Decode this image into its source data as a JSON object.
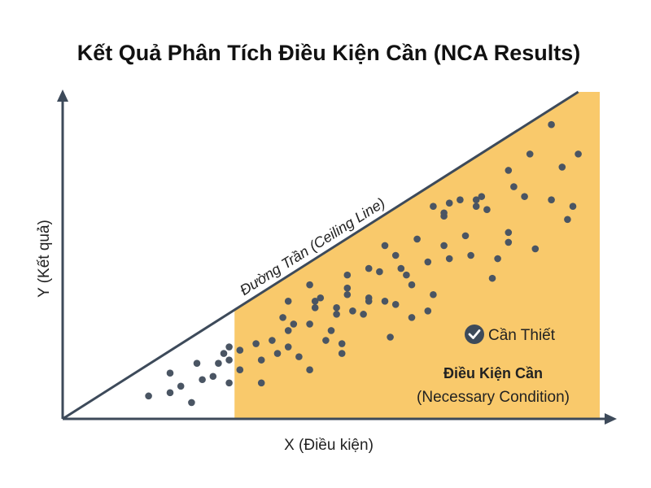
{
  "title": "Kết Quả Phân Tích Điều Kiện Cần (NCA Results)",
  "colors": {
    "axis": "#3d4a5a",
    "dot": "#4a5563",
    "region": "#f9c96b",
    "background": "#ffffff"
  },
  "chart_data": {
    "type": "scatter",
    "title": "Kết Quả Phân Tích Điều Kiện Cần (NCA Results)",
    "xlabel": "X (Điều kiện)",
    "ylabel": "Y (Kết quả)",
    "xlim": [
      0,
      100
    ],
    "ylim": [
      0,
      100
    ],
    "ticks": "none",
    "grid": false,
    "ceiling_line": {
      "label": "Đường Trần (Ceiling Line)",
      "from": [
        0,
        0
      ],
      "to": [
        96,
        100
      ]
    },
    "necessary_region": {
      "x_from": 32,
      "x_to": 100,
      "color": "#f9c96b"
    },
    "annotations": {
      "badge": "Cần Thiết",
      "badge_icon": "check-circle-icon",
      "region_title": "Điều Kiện Cần",
      "region_subtitle": "(Necessary Condition)"
    },
    "points": [
      [
        16,
        7
      ],
      [
        20,
        8
      ],
      [
        24,
        5
      ],
      [
        20,
        14
      ],
      [
        22,
        10
      ],
      [
        25,
        17
      ],
      [
        26,
        12
      ],
      [
        28,
        13
      ],
      [
        29,
        17
      ],
      [
        30,
        20
      ],
      [
        31,
        11
      ],
      [
        31,
        18
      ],
      [
        31,
        22
      ],
      [
        33,
        21
      ],
      [
        33,
        15
      ],
      [
        36,
        23
      ],
      [
        37,
        11
      ],
      [
        37,
        18
      ],
      [
        39,
        24
      ],
      [
        40,
        20
      ],
      [
        41,
        31
      ],
      [
        42,
        36
      ],
      [
        42,
        22
      ],
      [
        43,
        29
      ],
      [
        42,
        27
      ],
      [
        44,
        19
      ],
      [
        46,
        29
      ],
      [
        46,
        15
      ],
      [
        46,
        41
      ],
      [
        47,
        36
      ],
      [
        47,
        34
      ],
      [
        49,
        24
      ],
      [
        48,
        37
      ],
      [
        50,
        27
      ],
      [
        51,
        32
      ],
      [
        51,
        34
      ],
      [
        52,
        23
      ],
      [
        52,
        20
      ],
      [
        53,
        44
      ],
      [
        53,
        38
      ],
      [
        53,
        40
      ],
      [
        57,
        46
      ],
      [
        57,
        37
      ],
      [
        57,
        36
      ],
      [
        54,
        33
      ],
      [
        56,
        32
      ],
      [
        59,
        45
      ],
      [
        60,
        36
      ],
      [
        60,
        53
      ],
      [
        61,
        25
      ],
      [
        62,
        35
      ],
      [
        62,
        50
      ],
      [
        63,
        46
      ],
      [
        64,
        44
      ],
      [
        65,
        31
      ],
      [
        65,
        41
      ],
      [
        66,
        55
      ],
      [
        68,
        33
      ],
      [
        68,
        48
      ],
      [
        69,
        65
      ],
      [
        69,
        38
      ],
      [
        71,
        62
      ],
      [
        71,
        53
      ],
      [
        72,
        66
      ],
      [
        71,
        63
      ],
      [
        72,
        49
      ],
      [
        74,
        67
      ],
      [
        75,
        56
      ],
      [
        77,
        67
      ],
      [
        76,
        50
      ],
      [
        77,
        65
      ],
      [
        78,
        68
      ],
      [
        79,
        64
      ],
      [
        80,
        43
      ],
      [
        81,
        49
      ],
      [
        83,
        76
      ],
      [
        83,
        54
      ],
      [
        84,
        71
      ],
      [
        83,
        57
      ],
      [
        86,
        68
      ],
      [
        87,
        81
      ],
      [
        88,
        52
      ],
      [
        91,
        90
      ],
      [
        91,
        67
      ],
      [
        93,
        77
      ],
      [
        94,
        61
      ],
      [
        96,
        81
      ],
      [
        95,
        65
      ]
    ]
  }
}
